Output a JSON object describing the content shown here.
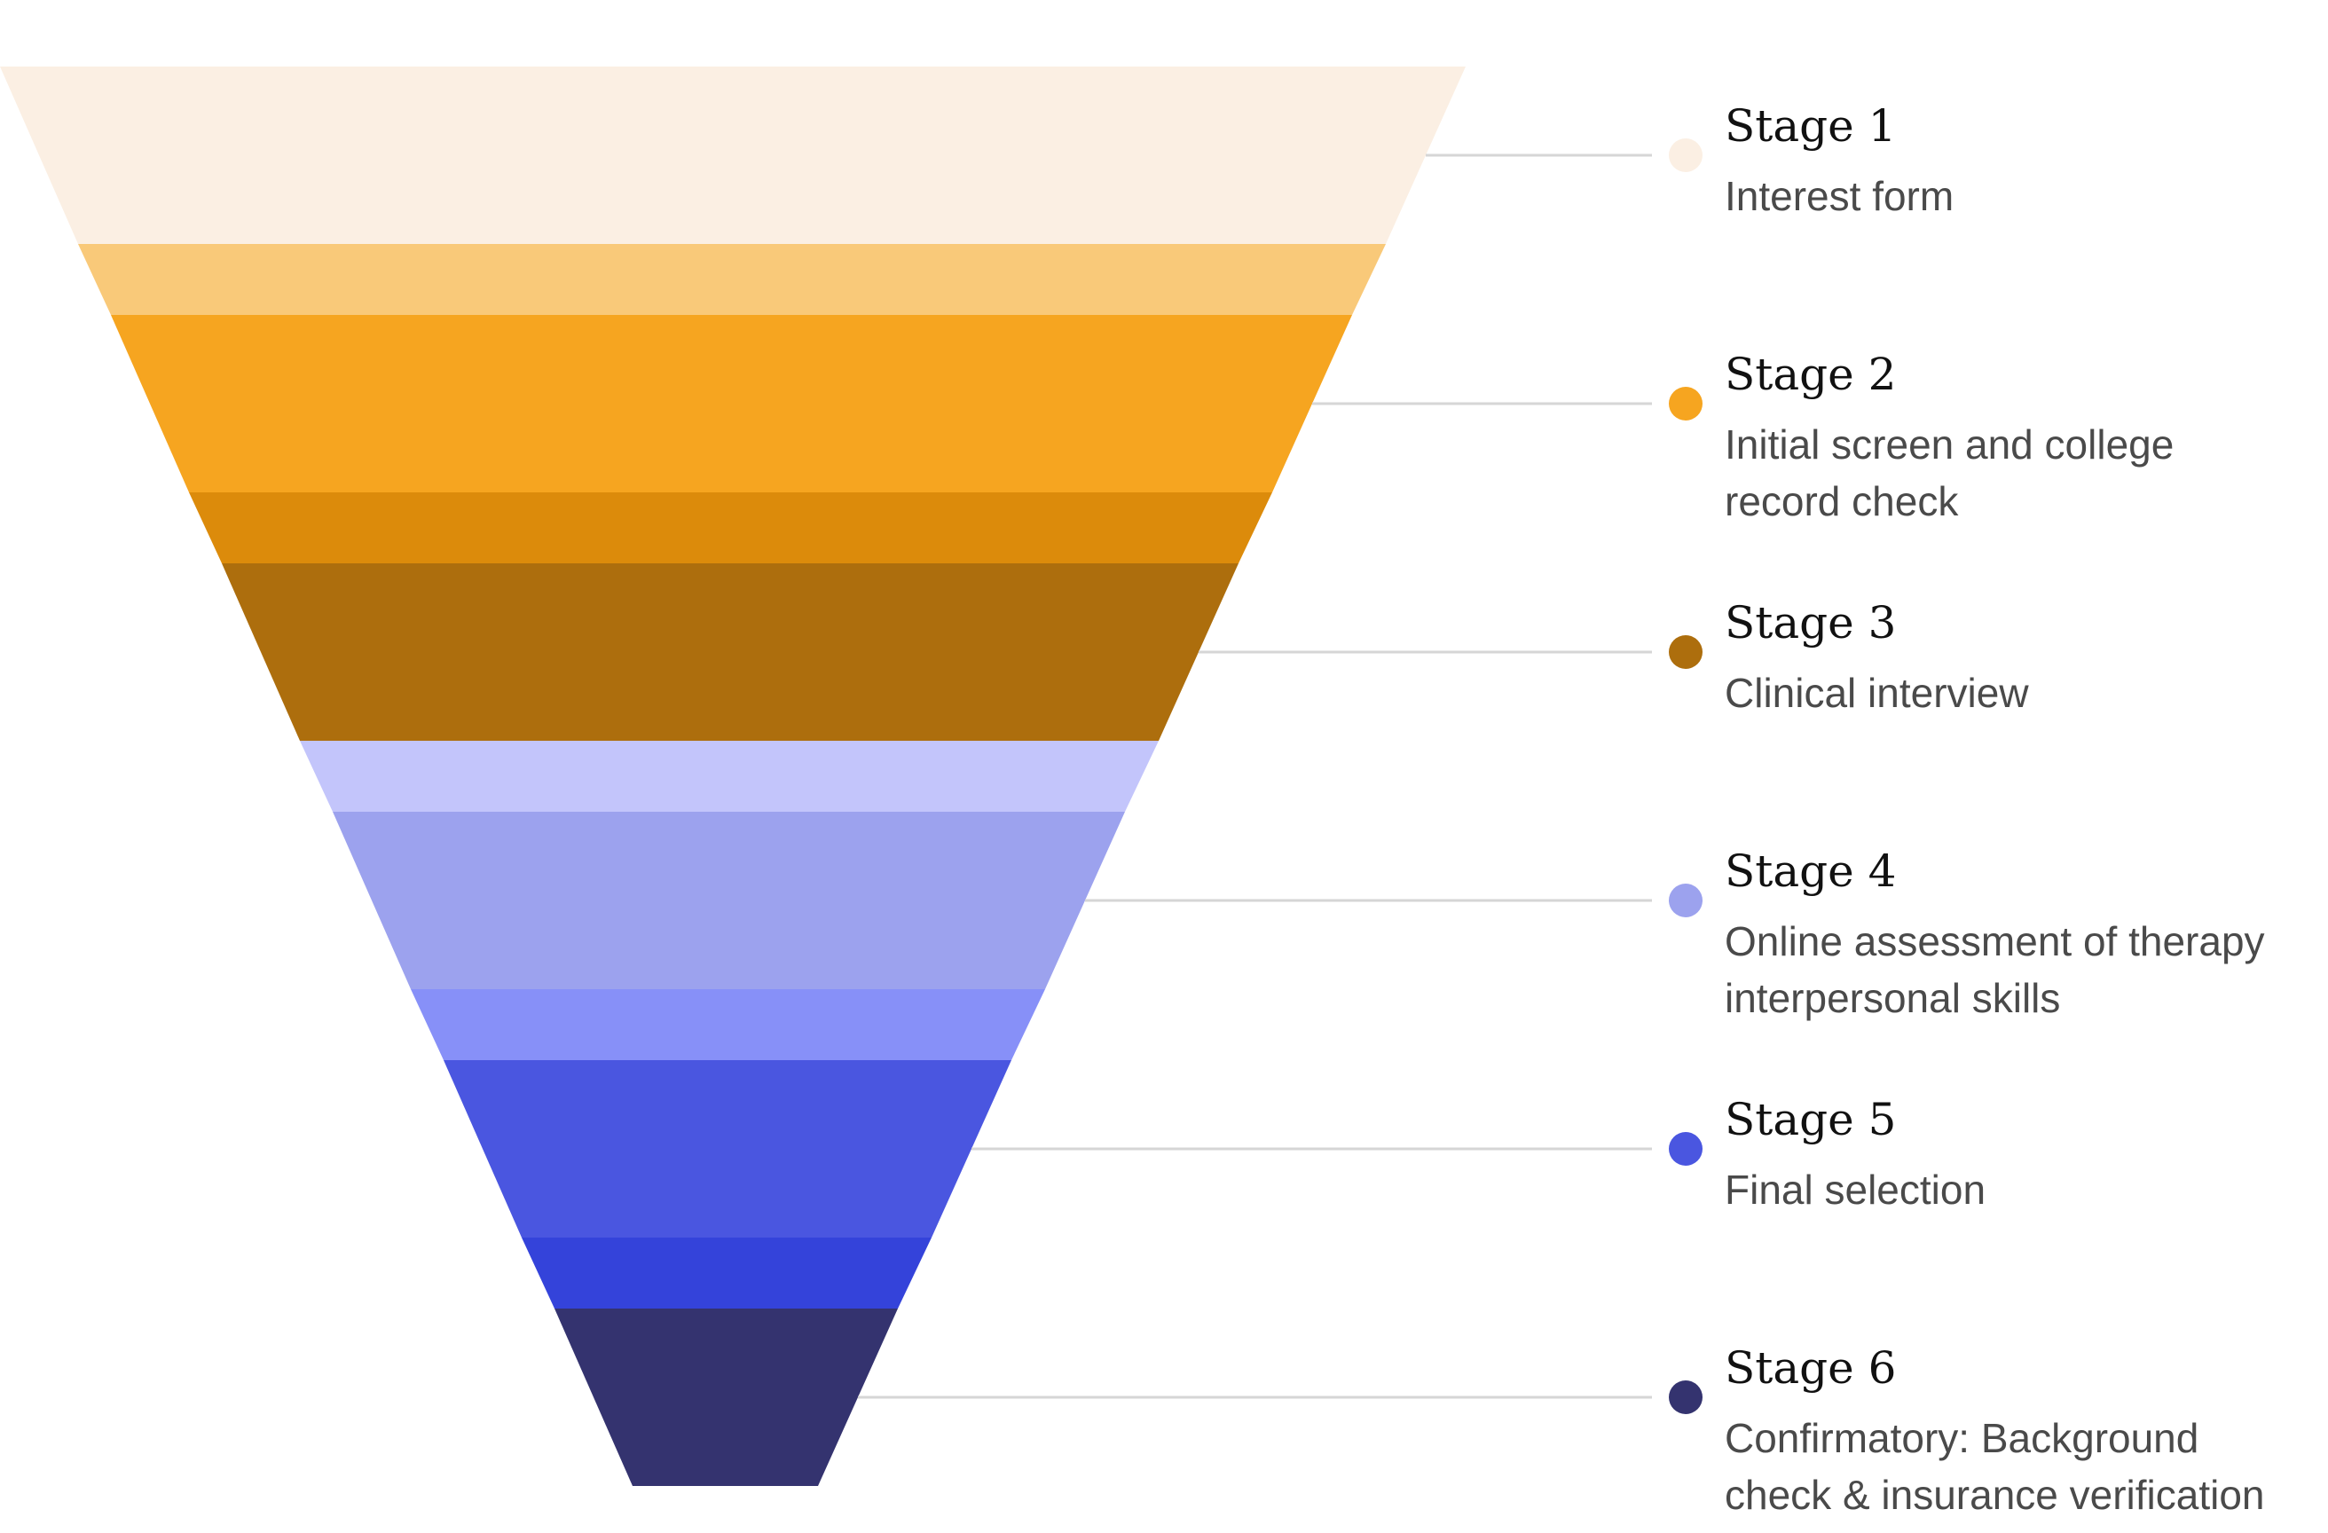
{
  "stages": [
    {
      "title": "Stage 1",
      "description_lines": [
        "Interest form"
      ],
      "color": "#fbefe3",
      "connector_color": "#fbefe3"
    },
    {
      "title": "Stage 2",
      "description_lines": [
        "Initial screen and college",
        "record check"
      ],
      "color": "#f6a520",
      "connector_color": "#f9c979"
    },
    {
      "title": "Stage 3",
      "description_lines": [
        "Clinical interview"
      ],
      "color": "#ad6e0d",
      "connector_color": "#dc8b0b"
    },
    {
      "title": "Stage 4",
      "description_lines": [
        "Online assessment of therapy",
        "interpersonal skills"
      ],
      "color": "#9ca2ee",
      "connector_color": "#c3c5fb"
    },
    {
      "title": "Stage 5",
      "description_lines": [
        "Final selection"
      ],
      "color": "#4a56e0",
      "connector_color": "#8790f8"
    },
    {
      "title": "Stage 6",
      "description_lines": [
        "Confirmatory: Background",
        "check & insurance verification"
      ],
      "color": "#34336f",
      "connector_color": "#3443da"
    }
  ],
  "leader_line_color": "#d6d6d6"
}
